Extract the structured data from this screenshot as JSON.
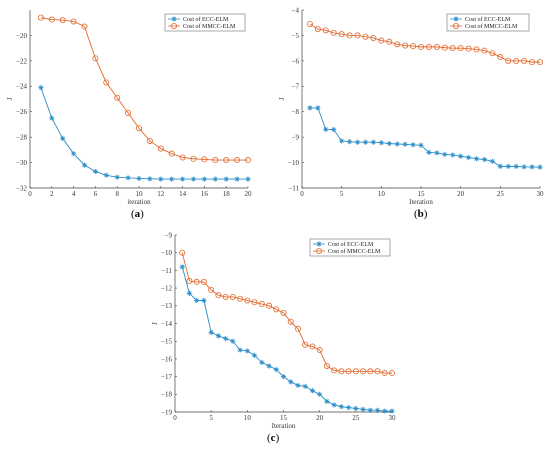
{
  "colors": {
    "ecc": "#2a8cc8",
    "mmcc": "#e2692c",
    "axis": "#404040"
  },
  "icons": {
    "ecc_marker": "asterisk-marker",
    "mmcc_marker": "circle-marker"
  },
  "chart_data": [
    {
      "type": "line",
      "caption": "a",
      "xlabel": "iteration",
      "ylabel": "J",
      "xlim": [
        0,
        20
      ],
      "ylim": [
        -32,
        -18
      ],
      "xticks": [
        0,
        2,
        4,
        6,
        8,
        10,
        12,
        14,
        16,
        18,
        20
      ],
      "yticks": [
        -32,
        -30,
        -28,
        -26,
        -24,
        -22,
        -20
      ],
      "grid": false,
      "legend_position": "top-right",
      "x": [
        1,
        2,
        3,
        4,
        5,
        6,
        7,
        8,
        9,
        10,
        11,
        12,
        13,
        14,
        15,
        16,
        17,
        18,
        19,
        20
      ],
      "series": [
        {
          "name": "Cost of ECC-ELM",
          "values": [
            -24.1,
            -26.5,
            -28.1,
            -29.3,
            -30.2,
            -30.7,
            -31.0,
            -31.15,
            -31.2,
            -31.25,
            -31.28,
            -31.3,
            -31.3,
            -31.3,
            -31.3,
            -31.3,
            -31.3,
            -31.3,
            -31.3,
            -31.3
          ]
        },
        {
          "name": "Cost of MMCC-ELM",
          "values": [
            -18.6,
            -18.75,
            -18.8,
            -18.9,
            -19.3,
            -21.8,
            -23.7,
            -24.9,
            -26.1,
            -27.3,
            -28.3,
            -28.9,
            -29.3,
            -29.6,
            -29.7,
            -29.75,
            -29.8,
            -29.8,
            -29.8,
            -29.8
          ]
        }
      ]
    },
    {
      "type": "line",
      "caption": "b",
      "xlabel": "Iteration",
      "ylabel": "J",
      "xlim": [
        0,
        30
      ],
      "ylim": [
        -11,
        -4
      ],
      "xticks": [
        0,
        5,
        10,
        15,
        20,
        25,
        30
      ],
      "yticks": [
        -11,
        -10,
        -9,
        -8,
        -7,
        -6,
        -5,
        -4
      ],
      "grid": false,
      "legend_position": "top-right",
      "x": [
        1,
        2,
        3,
        4,
        5,
        6,
        7,
        8,
        9,
        10,
        11,
        12,
        13,
        14,
        15,
        16,
        17,
        18,
        19,
        20,
        21,
        22,
        23,
        24,
        25,
        26,
        27,
        28,
        29,
        30
      ],
      "series": [
        {
          "name": "Cost of ECC-ELM",
          "values": [
            -7.85,
            -7.85,
            -8.7,
            -8.7,
            -9.15,
            -9.18,
            -9.2,
            -9.2,
            -9.2,
            -9.22,
            -9.25,
            -9.27,
            -9.28,
            -9.3,
            -9.32,
            -9.6,
            -9.62,
            -9.68,
            -9.7,
            -9.75,
            -9.8,
            -9.85,
            -9.88,
            -9.95,
            -10.15,
            -10.15,
            -10.15,
            -10.17,
            -10.17,
            -10.18
          ]
        },
        {
          "name": "Cost of MMCC-ELM",
          "values": [
            -4.55,
            -4.75,
            -4.8,
            -4.9,
            -4.95,
            -5.0,
            -5.0,
            -5.05,
            -5.1,
            -5.2,
            -5.25,
            -5.35,
            -5.4,
            -5.42,
            -5.45,
            -5.45,
            -5.45,
            -5.48,
            -5.5,
            -5.5,
            -5.52,
            -5.55,
            -5.6,
            -5.7,
            -5.85,
            -6.0,
            -6.0,
            -6.0,
            -6.05,
            -6.05
          ]
        }
      ]
    },
    {
      "type": "line",
      "caption": "c",
      "xlabel": "Iteration",
      "ylabel": "J",
      "xlim": [
        0,
        30
      ],
      "ylim": [
        -19,
        -9
      ],
      "xticks": [
        0,
        5,
        10,
        15,
        20,
        25,
        30
      ],
      "yticks": [
        -19,
        -18,
        -17,
        -16,
        -15,
        -14,
        -13,
        -12,
        -11,
        -10,
        -9
      ],
      "grid": false,
      "legend_position": "top-right",
      "x": [
        1,
        2,
        3,
        4,
        5,
        6,
        7,
        8,
        9,
        10,
        11,
        12,
        13,
        14,
        15,
        16,
        17,
        18,
        19,
        20,
        21,
        22,
        23,
        24,
        25,
        26,
        27,
        28,
        29,
        30
      ],
      "series": [
        {
          "name": "Cost of ECC-ELM",
          "values": [
            -10.8,
            -12.3,
            -12.7,
            -12.7,
            -14.5,
            -14.7,
            -14.85,
            -15.0,
            -15.5,
            -15.55,
            -15.8,
            -16.2,
            -16.4,
            -16.6,
            -17.0,
            -17.3,
            -17.5,
            -17.55,
            -17.8,
            -18.0,
            -18.4,
            -18.6,
            -18.7,
            -18.75,
            -18.8,
            -18.85,
            -18.9,
            -18.9,
            -18.95,
            -18.95
          ]
        },
        {
          "name": "Cost of MMCC-ELM",
          "values": [
            -10.0,
            -11.6,
            -11.65,
            -11.65,
            -12.1,
            -12.4,
            -12.5,
            -12.5,
            -12.6,
            -12.7,
            -12.8,
            -12.9,
            -13.0,
            -13.2,
            -13.4,
            -13.9,
            -14.3,
            -15.2,
            -15.3,
            -15.5,
            -16.4,
            -16.65,
            -16.7,
            -16.7,
            -16.7,
            -16.7,
            -16.7,
            -16.7,
            -16.8,
            -16.8
          ]
        }
      ]
    }
  ]
}
